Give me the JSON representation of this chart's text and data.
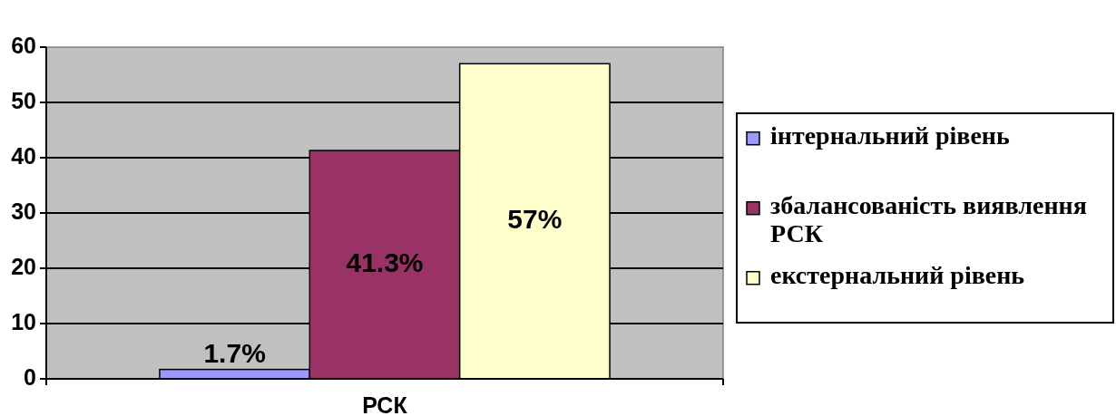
{
  "chart_data": {
    "type": "bar",
    "categories": [
      "РСК"
    ],
    "series": [
      {
        "name": "інтернальний рівень",
        "color": "#9999ff",
        "values": [
          1.7
        ],
        "value_labels": [
          "1.7%"
        ]
      },
      {
        "name": "збалансованість виявлення РСК",
        "color": "#993366",
        "values": [
          41.3
        ],
        "value_labels": [
          "41.3%"
        ]
      },
      {
        "name": "екстернальний рівень",
        "color": "#ffffcc",
        "values": [
          57
        ],
        "value_labels": [
          "57%"
        ]
      }
    ],
    "ylim": [
      0,
      60
    ],
    "yticks": [
      0,
      10,
      20,
      30,
      40,
      50,
      60
    ],
    "grid": "y",
    "legend": "right"
  }
}
